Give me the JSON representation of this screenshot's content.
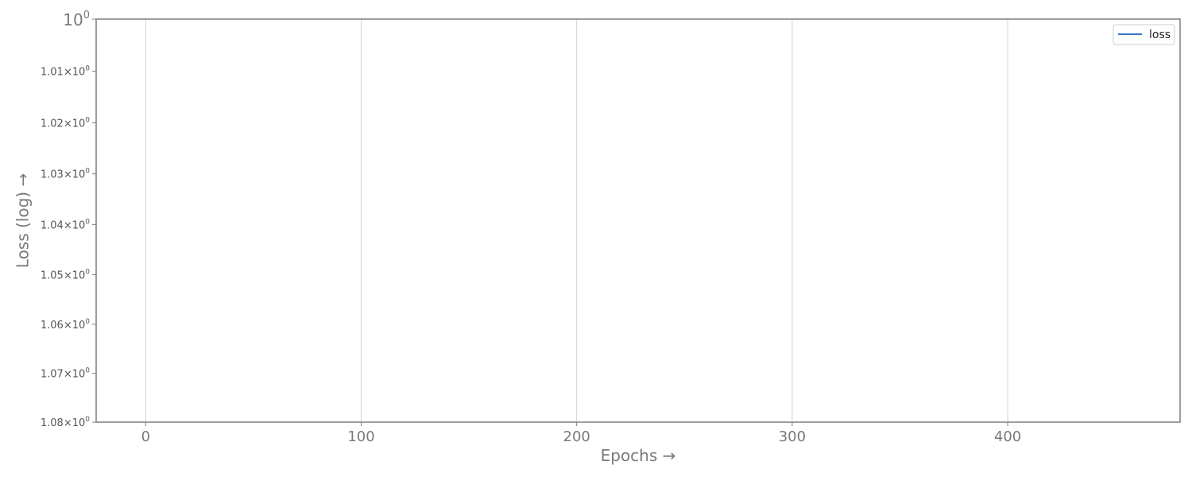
{
  "chart_data": {
    "type": "line",
    "title": "",
    "xlabel": "Epochs →",
    "ylabel": "Loss (log) →",
    "x_ticks": [
      0,
      100,
      200,
      300,
      400
    ],
    "x_tick_labels": [
      "0",
      "100",
      "200",
      "300",
      "400"
    ],
    "xlim": [
      -23,
      480
    ],
    "y_scale": "log",
    "y_inverted": true,
    "y_ticks": [
      1.0,
      1.01,
      1.02,
      1.03,
      1.04,
      1.05,
      1.06,
      1.07,
      1.08
    ],
    "y_tick_labels": [
      {
        "base": "10",
        "exp": "0",
        "mantissa": ""
      },
      {
        "base": "10",
        "exp": "0",
        "mantissa": "1.01×"
      },
      {
        "base": "10",
        "exp": "0",
        "mantissa": "1.02×"
      },
      {
        "base": "10",
        "exp": "0",
        "mantissa": "1.03×"
      },
      {
        "base": "10",
        "exp": "0",
        "mantissa": "1.04×"
      },
      {
        "base": "10",
        "exp": "0",
        "mantissa": "1.05×"
      },
      {
        "base": "10",
        "exp": "0",
        "mantissa": "1.06×"
      },
      {
        "base": "10",
        "exp": "0",
        "mantissa": "1.07×"
      },
      {
        "base": "10",
        "exp": "0",
        "mantissa": "1.08×"
      }
    ],
    "ylim": [
      1.0,
      1.08
    ],
    "grid": "x",
    "legend_position": "top-right",
    "series": [
      {
        "name": "loss",
        "color": "#3a78c9",
        "x": [],
        "values": []
      }
    ]
  }
}
